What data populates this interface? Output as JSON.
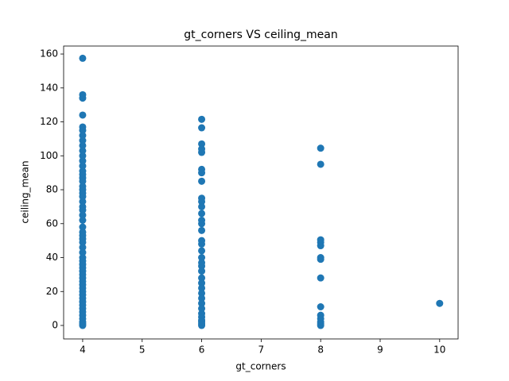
{
  "chart_data": {
    "type": "scatter",
    "title": "gt_corners VS ceiling_mean",
    "xlabel": "gt_corners",
    "ylabel": "ceiling_mean",
    "color": "#1f77b4",
    "x": [
      4,
      4,
      4,
      4,
      4,
      4,
      4,
      4,
      4,
      4,
      4,
      4,
      4,
      4,
      4,
      4,
      4,
      4,
      4,
      4,
      4,
      4,
      4,
      4,
      4,
      4,
      4,
      4,
      4,
      4,
      4,
      4,
      4,
      4,
      4,
      4,
      4,
      4,
      4,
      4,
      4,
      4,
      4,
      4,
      4,
      4,
      4,
      4,
      4,
      4,
      4,
      4,
      4,
      4,
      4,
      6,
      6,
      6,
      6,
      6,
      6,
      6,
      6,
      6,
      6,
      6,
      6,
      6,
      6,
      6,
      6,
      6,
      6,
      6,
      6,
      6,
      6,
      6,
      6,
      6,
      6,
      6,
      6,
      6,
      6,
      6,
      6,
      6,
      6,
      6,
      8,
      8,
      8,
      8,
      8,
      8,
      8,
      8,
      8,
      8,
      8,
      8,
      8,
      8,
      10
    ],
    "values": [
      157.5,
      136,
      134,
      124,
      117,
      115,
      112,
      109,
      106,
      103,
      100,
      97,
      94,
      91,
      89,
      87,
      85,
      82,
      80,
      78,
      76,
      73,
      70,
      68,
      65,
      62,
      58,
      55,
      53,
      51,
      49,
      46,
      43,
      40,
      38,
      36,
      34,
      32,
      30,
      28,
      26,
      24,
      22,
      20,
      18,
      16,
      14,
      12,
      10,
      8,
      6,
      4,
      2,
      1,
      0,
      121.5,
      116.5,
      107,
      104,
      102,
      92,
      90,
      85,
      75,
      73,
      70,
      66,
      62,
      60,
      56,
      50,
      48,
      44,
      40,
      37,
      35,
      32,
      28,
      25,
      22,
      19,
      16,
      13,
      10,
      7,
      5,
      3,
      2,
      1,
      0,
      104.5,
      95,
      50.5,
      49,
      47,
      40,
      39,
      28,
      11,
      6,
      4,
      2,
      1,
      0,
      13
    ],
    "xlim": [
      3.68,
      10.31
    ],
    "xticks": [
      4,
      5,
      6,
      7,
      8,
      9,
      10
    ],
    "ylim": [
      -7.95,
      164.7
    ],
    "yticks": [
      0,
      20,
      40,
      60,
      80,
      100,
      120,
      140,
      160
    ]
  }
}
